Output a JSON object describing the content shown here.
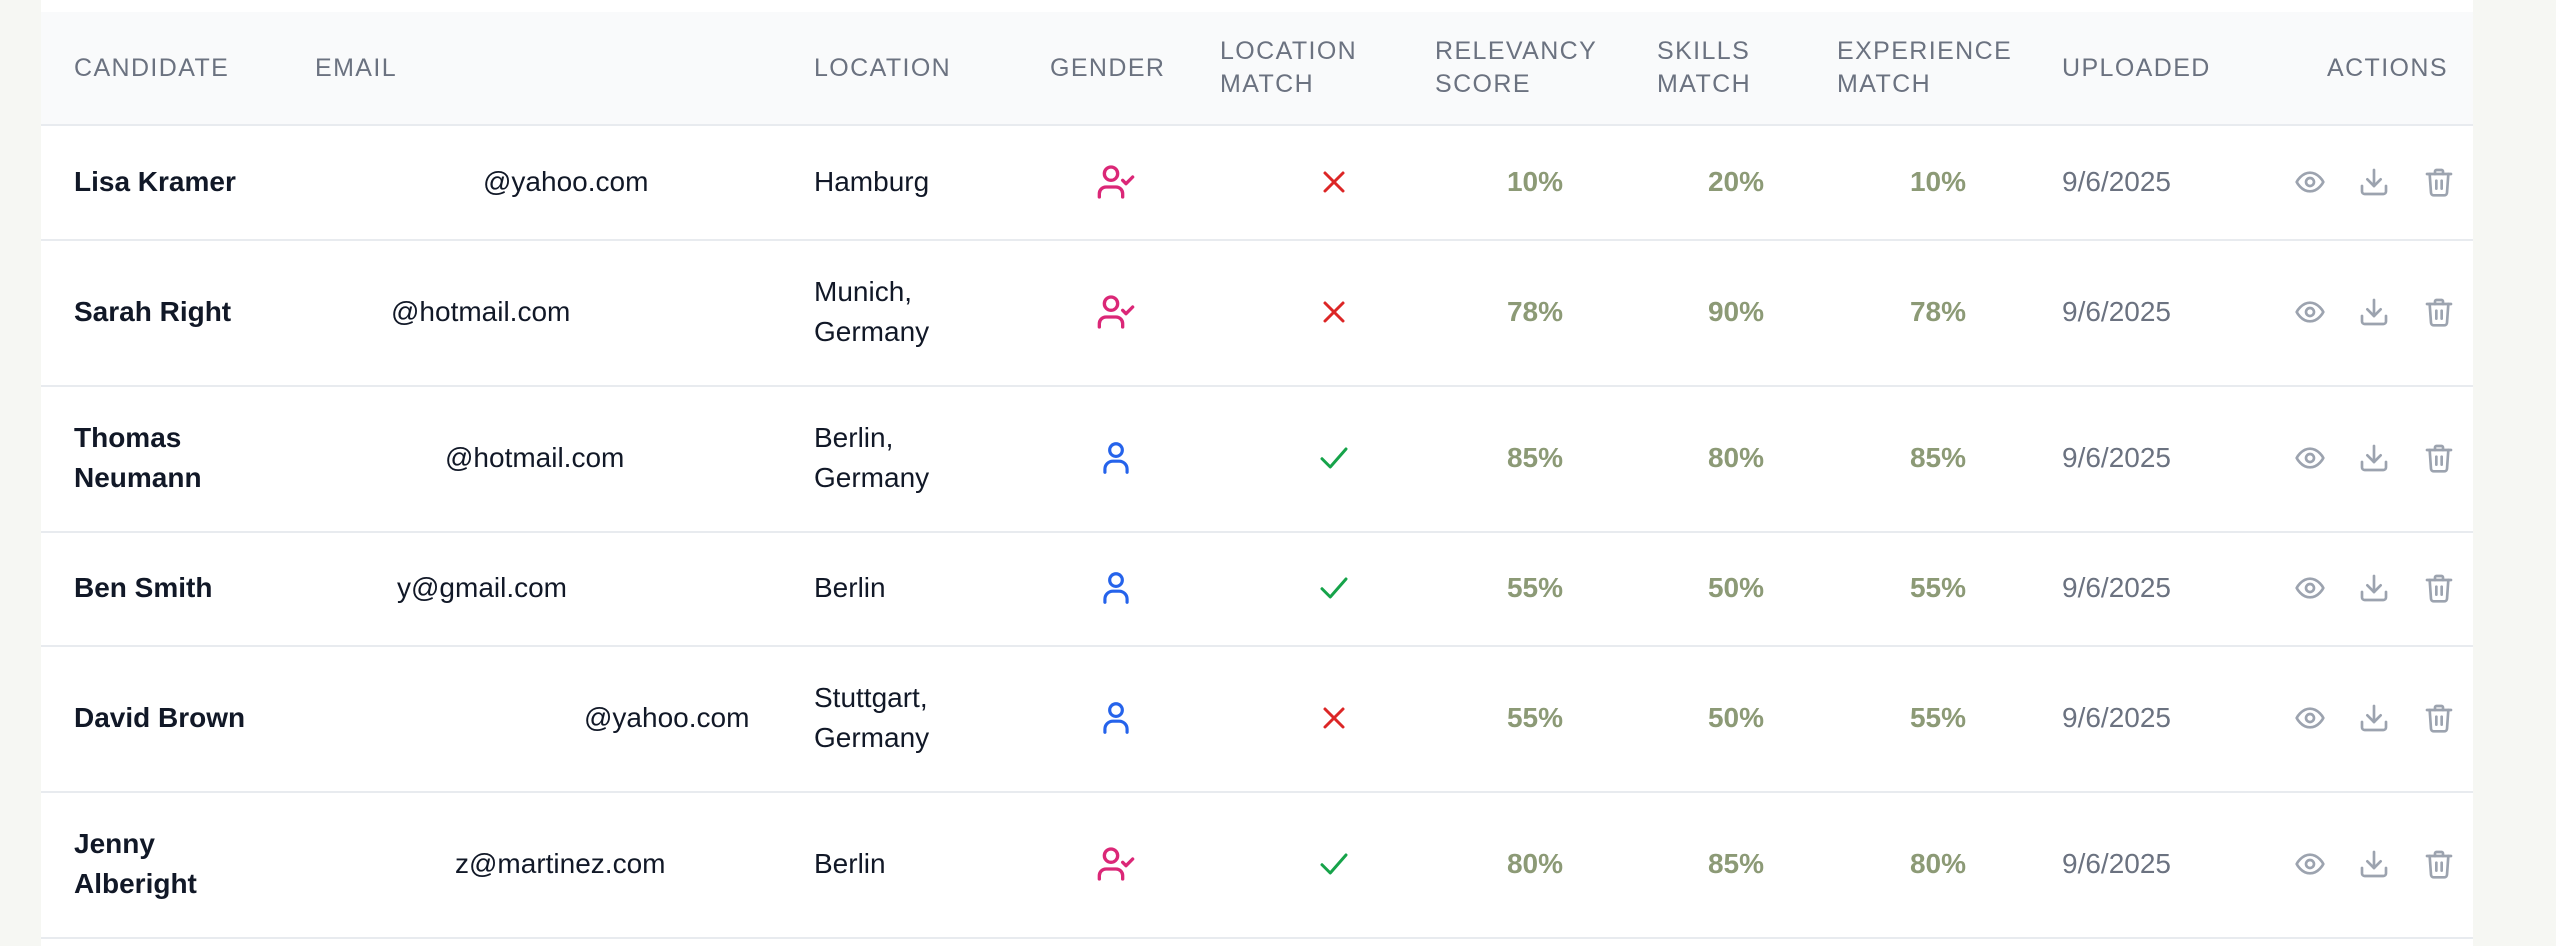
{
  "table": {
    "headers": {
      "candidate": "CANDIDATE",
      "email": "EMAIL",
      "location": "LOCATION",
      "gender": "GENDER",
      "location_match": "LOCATION\nMATCH",
      "relevancy": "RELEVANCY\nSCORE",
      "skills": "SKILLS\nMATCH",
      "experience": "EXPERIENCE\nMATCH",
      "uploaded": "UPLOADED",
      "actions": "ACTIONS"
    },
    "rows": [
      {
        "name": "Lisa Kramer",
        "email": "@yahoo.com",
        "location": "Hamburg",
        "gender": "female",
        "location_match": false,
        "relevancy": "10%",
        "skills": "20%",
        "experience": "10%",
        "uploaded": "9/6/2025"
      },
      {
        "name": "Sarah Right",
        "email": "@hotmail.com",
        "location": "Munich,\nGermany",
        "gender": "female",
        "location_match": false,
        "relevancy": "78%",
        "skills": "90%",
        "experience": "78%",
        "uploaded": "9/6/2025"
      },
      {
        "name": "Thomas\nNeumann",
        "email": "@hotmail.com",
        "location": "Berlin,\nGermany",
        "gender": "male",
        "location_match": true,
        "relevancy": "85%",
        "skills": "80%",
        "experience": "85%",
        "uploaded": "9/6/2025"
      },
      {
        "name": "Ben Smith",
        "email": "y@gmail.com",
        "location": "Berlin",
        "gender": "male",
        "location_match": true,
        "relevancy": "55%",
        "skills": "50%",
        "experience": "55%",
        "uploaded": "9/6/2025"
      },
      {
        "name": "David Brown",
        "email": "@yahoo.com",
        "location": "Stuttgart,\nGermany",
        "gender": "male",
        "location_match": false,
        "relevancy": "55%",
        "skills": "50%",
        "experience": "55%",
        "uploaded": "9/6/2025"
      },
      {
        "name": "Jenny\nAlberight",
        "email": "z@martinez.com",
        "location": "Berlin",
        "gender": "female",
        "location_match": true,
        "relevancy": "80%",
        "skills": "85%",
        "experience": "80%",
        "uploaded": "9/6/2025"
      }
    ]
  },
  "colors": {
    "female_icon": "#db2777",
    "male_icon": "#2563eb",
    "match_yes": "#16a34a",
    "match_no": "#dc2626",
    "percent_text": "#8c9a76",
    "action_icon": "#9ca3af"
  },
  "icons": {
    "female": "user-check-icon",
    "male": "user-icon",
    "match_yes": "check-icon",
    "match_no": "x-icon",
    "view": "eye-icon",
    "download": "download-icon",
    "delete": "trash-icon"
  }
}
